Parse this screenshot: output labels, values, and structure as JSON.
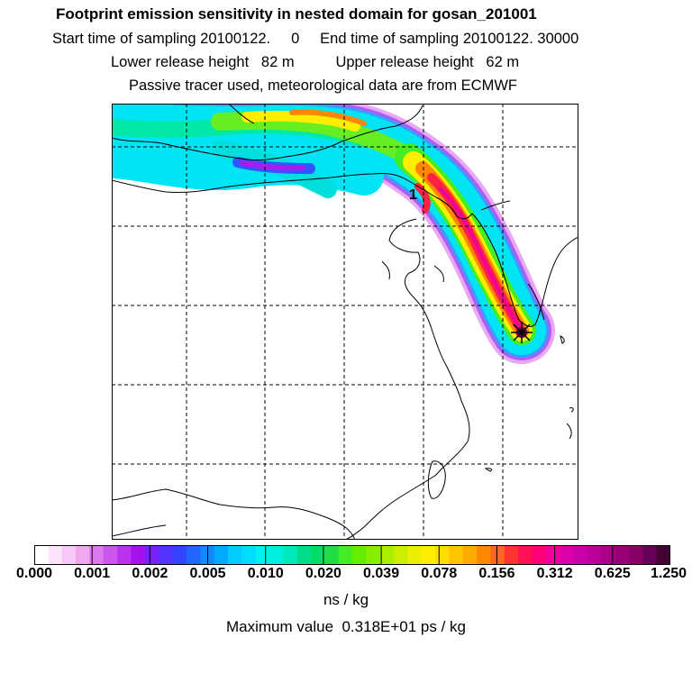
{
  "header": {
    "title": "Footprint emission sensitivity in nested domain for gosan_201001",
    "sampling": "Start time of sampling 20100122.     0     End time of sampling 20100122. 30000",
    "release": "Lower release height   82 m          Upper release height   62 m",
    "tracer": "Passive tracer used, meteorological data are from ECMWF"
  },
  "map": {
    "plume_label": "1",
    "station_marker": "star-marker"
  },
  "colorbar": {
    "tick_labels": [
      "0.000",
      "0.001",
      "0.002",
      "0.005",
      "0.010",
      "0.020",
      "0.039",
      "0.078",
      "0.156",
      "0.312",
      "0.625",
      "1.250"
    ],
    "colors": [
      "#ffffff",
      "#fde4fd",
      "#f8c8f8",
      "#efa8ef",
      "#dd77ee",
      "#cc55ee",
      "#bb33ee",
      "#a611ee",
      "#7722ff",
      "#5533ff",
      "#3344ff",
      "#2266ff",
      "#1188ff",
      "#00aaff",
      "#00ccff",
      "#00ddff",
      "#00f0f0",
      "#00eedd",
      "#00e8bb",
      "#00dd88",
      "#00dd66",
      "#22dd44",
      "#44ee22",
      "#66ee00",
      "#88ee00",
      "#aaee00",
      "#ccee00",
      "#e8f000",
      "#ffee00",
      "#ffdd00",
      "#ffc400",
      "#ffaa00",
      "#ff8800",
      "#ff6622",
      "#ff3333",
      "#ff1155",
      "#ff0077",
      "#ee0099",
      "#dd00aa",
      "#cc00aa",
      "#bb0099",
      "#aa0088",
      "#990077",
      "#880066",
      "#660055",
      "#440033"
    ],
    "units": "ns / kg"
  },
  "footer": {
    "max_value": "Maximum value  0.318E+01 ps / kg"
  }
}
